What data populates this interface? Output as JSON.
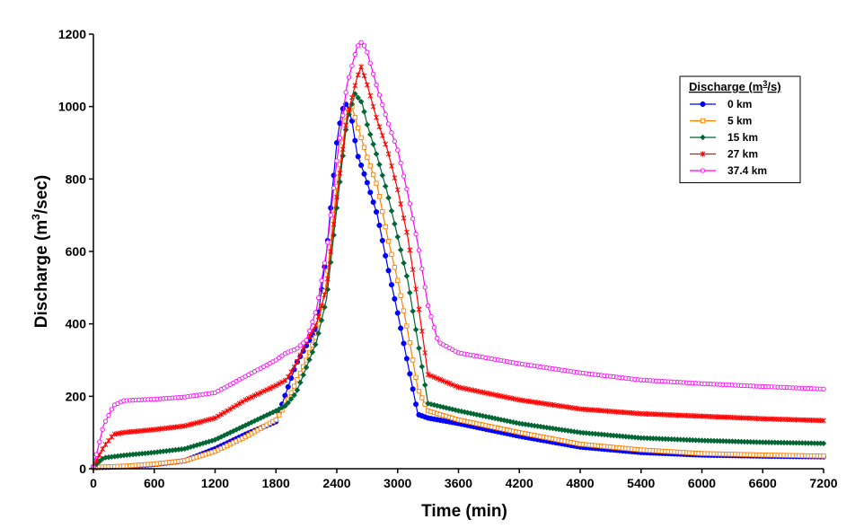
{
  "chart_data": {
    "type": "line",
    "title": "",
    "xlabel": "Time (min)",
    "ylabel_parts": {
      "pre": "Discharge (m",
      "sup": "3",
      "post": "/sec)"
    },
    "xlim": [
      0,
      7200
    ],
    "ylim": [
      0,
      1200
    ],
    "xticks": [
      0,
      600,
      1200,
      1800,
      2400,
      3000,
      3600,
      4200,
      4800,
      5400,
      6000,
      6600,
      7200
    ],
    "yticks": [
      0,
      200,
      400,
      600,
      800,
      1000,
      1200
    ],
    "grid": false,
    "legend": {
      "position": "top-right",
      "title_parts": {
        "pre": "Discharge (m",
        "sup": "3",
        "post": "/s)"
      }
    },
    "series": [
      {
        "name": "0 km",
        "color": "#0000ff",
        "marker": "filled-circle",
        "points": [
          [
            0,
            3
          ],
          [
            300,
            6
          ],
          [
            600,
            12
          ],
          [
            900,
            22
          ],
          [
            1200,
            55
          ],
          [
            1500,
            95
          ],
          [
            1800,
            130
          ],
          [
            1900,
            210
          ],
          [
            2000,
            290
          ],
          [
            2100,
            340
          ],
          [
            2200,
            390
          ],
          [
            2300,
            600
          ],
          [
            2400,
            900
          ],
          [
            2450,
            990
          ],
          [
            2500,
            1010
          ],
          [
            2550,
            960
          ],
          [
            2600,
            870
          ],
          [
            2700,
            790
          ],
          [
            2800,
            700
          ],
          [
            2900,
            560
          ],
          [
            3000,
            430
          ],
          [
            3100,
            290
          ],
          [
            3200,
            150
          ],
          [
            3300,
            140
          ],
          [
            3600,
            125
          ],
          [
            4200,
            90
          ],
          [
            4800,
            60
          ],
          [
            5400,
            45
          ],
          [
            6000,
            38
          ],
          [
            6600,
            35
          ],
          [
            7200,
            33
          ]
        ]
      },
      {
        "name": "5 km",
        "color": "#ff8000",
        "marker": "open-square",
        "points": [
          [
            0,
            4
          ],
          [
            300,
            7
          ],
          [
            600,
            13
          ],
          [
            900,
            22
          ],
          [
            1200,
            48
          ],
          [
            1500,
            88
          ],
          [
            1800,
            135
          ],
          [
            1900,
            180
          ],
          [
            2000,
            240
          ],
          [
            2100,
            300
          ],
          [
            2200,
            370
          ],
          [
            2300,
            520
          ],
          [
            2400,
            780
          ],
          [
            2500,
            980
          ],
          [
            2550,
            1000
          ],
          [
            2600,
            950
          ],
          [
            2700,
            860
          ],
          [
            2800,
            780
          ],
          [
            2900,
            640
          ],
          [
            3000,
            520
          ],
          [
            3100,
            380
          ],
          [
            3200,
            220
          ],
          [
            3300,
            160
          ],
          [
            3600,
            135
          ],
          [
            4200,
            100
          ],
          [
            4800,
            68
          ],
          [
            5400,
            52
          ],
          [
            6000,
            42
          ],
          [
            6600,
            38
          ],
          [
            7200,
            35
          ]
        ]
      },
      {
        "name": "15 km",
        "color": "#006633",
        "marker": "filled-diamond",
        "points": [
          [
            0,
            5
          ],
          [
            100,
            30
          ],
          [
            300,
            37
          ],
          [
            600,
            45
          ],
          [
            900,
            55
          ],
          [
            1200,
            80
          ],
          [
            1500,
            120
          ],
          [
            1800,
            160
          ],
          [
            1900,
            175
          ],
          [
            2000,
            210
          ],
          [
            2100,
            280
          ],
          [
            2200,
            350
          ],
          [
            2300,
            470
          ],
          [
            2400,
            720
          ],
          [
            2500,
            960
          ],
          [
            2580,
            1035
          ],
          [
            2650,
            1010
          ],
          [
            2700,
            950
          ],
          [
            2800,
            860
          ],
          [
            2900,
            760
          ],
          [
            3000,
            640
          ],
          [
            3100,
            520
          ],
          [
            3200,
            350
          ],
          [
            3300,
            180
          ],
          [
            3600,
            160
          ],
          [
            4200,
            125
          ],
          [
            4800,
            100
          ],
          [
            5400,
            85
          ],
          [
            6000,
            78
          ],
          [
            6600,
            73
          ],
          [
            7200,
            70
          ]
        ]
      },
      {
        "name": "27 km",
        "color": "#ff0000",
        "marker": "star",
        "points": [
          [
            0,
            5
          ],
          [
            100,
            60
          ],
          [
            200,
            95
          ],
          [
            300,
            100
          ],
          [
            600,
            108
          ],
          [
            900,
            118
          ],
          [
            1200,
            140
          ],
          [
            1500,
            190
          ],
          [
            1800,
            230
          ],
          [
            1900,
            245
          ],
          [
            2000,
            290
          ],
          [
            2100,
            350
          ],
          [
            2200,
            400
          ],
          [
            2300,
            500
          ],
          [
            2400,
            750
          ],
          [
            2500,
            970
          ],
          [
            2600,
            1080
          ],
          [
            2640,
            1110
          ],
          [
            2700,
            1060
          ],
          [
            2800,
            960
          ],
          [
            2900,
            880
          ],
          [
            3000,
            770
          ],
          [
            3100,
            640
          ],
          [
            3200,
            460
          ],
          [
            3300,
            260
          ],
          [
            3600,
            225
          ],
          [
            4200,
            190
          ],
          [
            4800,
            165
          ],
          [
            5400,
            152
          ],
          [
            6000,
            145
          ],
          [
            6600,
            138
          ],
          [
            7200,
            133
          ]
        ]
      },
      {
        "name": "37.4 km",
        "color": "#ff00ff",
        "marker": "open-circle",
        "points": [
          [
            0,
            5
          ],
          [
            100,
            120
          ],
          [
            200,
            175
          ],
          [
            300,
            188
          ],
          [
            600,
            192
          ],
          [
            900,
            198
          ],
          [
            1200,
            210
          ],
          [
            1500,
            255
          ],
          [
            1800,
            300
          ],
          [
            1900,
            320
          ],
          [
            2000,
            330
          ],
          [
            2100,
            355
          ],
          [
            2200,
            440
          ],
          [
            2300,
            600
          ],
          [
            2400,
            850
          ],
          [
            2500,
            1060
          ],
          [
            2600,
            1165
          ],
          [
            2650,
            1180
          ],
          [
            2700,
            1150
          ],
          [
            2800,
            1050
          ],
          [
            2900,
            960
          ],
          [
            3000,
            880
          ],
          [
            3100,
            760
          ],
          [
            3200,
            620
          ],
          [
            3300,
            450
          ],
          [
            3400,
            350
          ],
          [
            3600,
            320
          ],
          [
            4200,
            290
          ],
          [
            4800,
            265
          ],
          [
            5400,
            245
          ],
          [
            6000,
            235
          ],
          [
            6600,
            227
          ],
          [
            7200,
            220
          ]
        ]
      }
    ]
  }
}
